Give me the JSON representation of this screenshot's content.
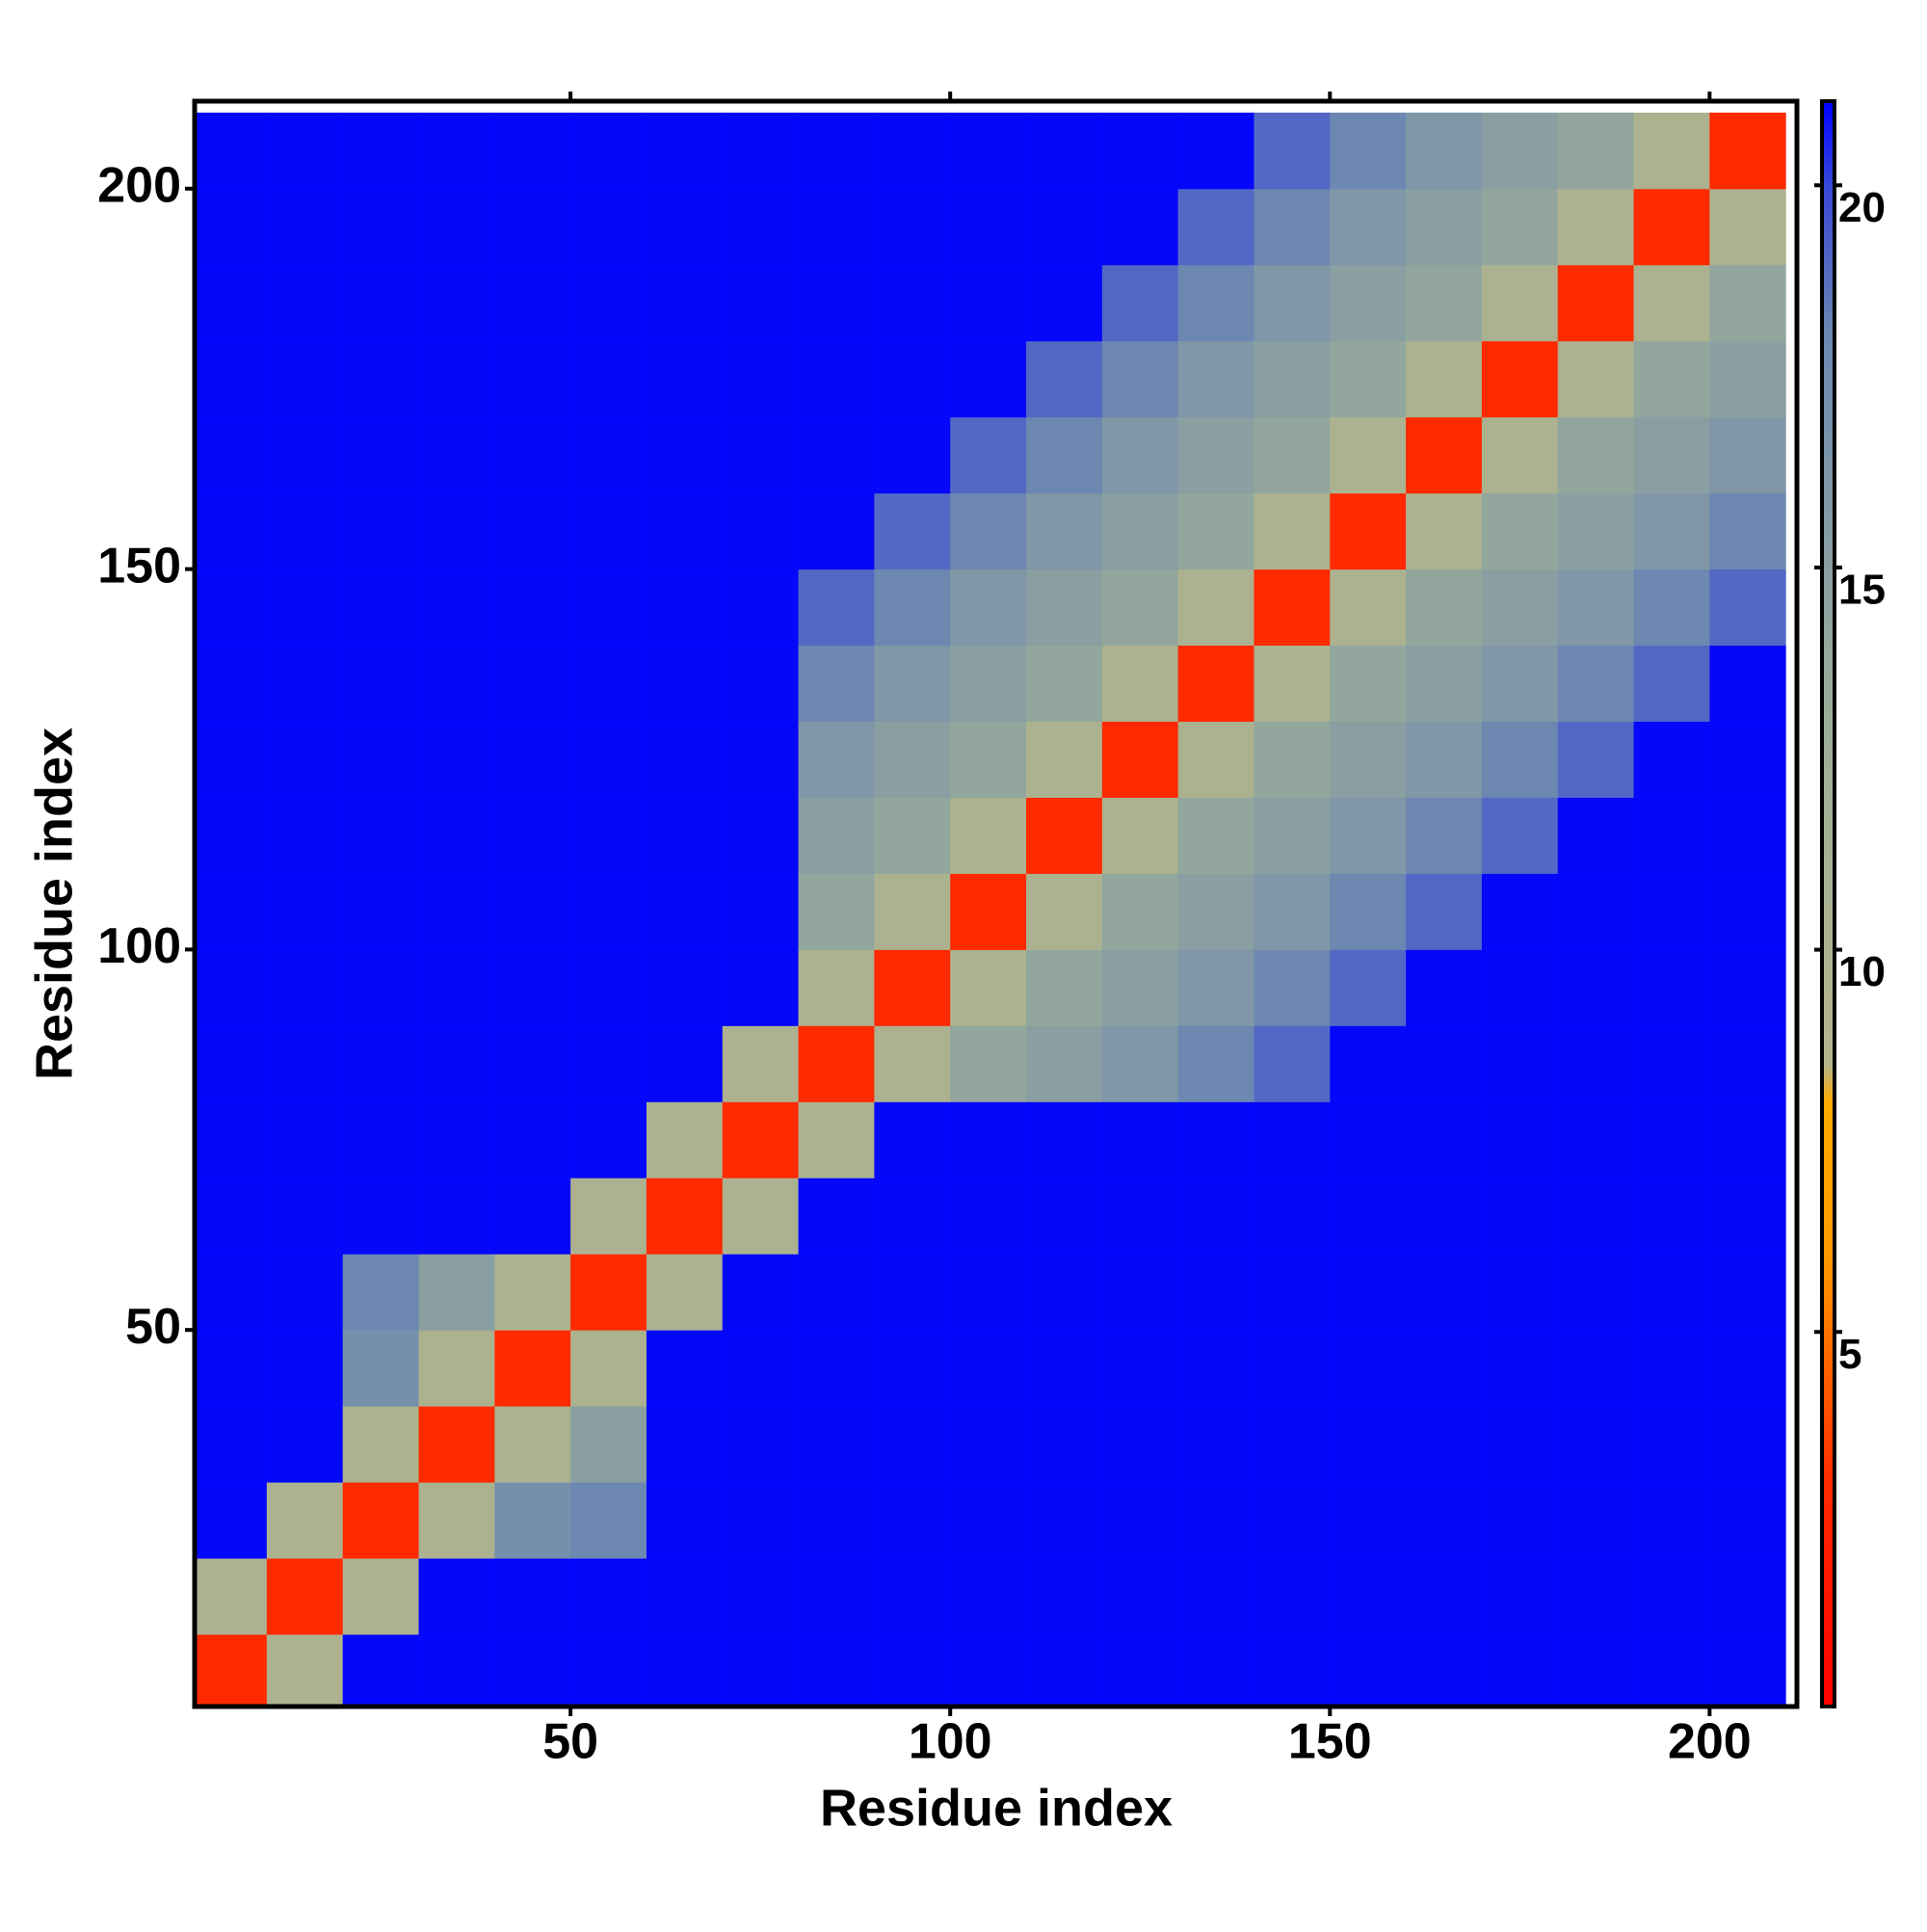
{
  "chart_data": {
    "type": "heatmap",
    "xlabel": "Residue index",
    "ylabel": "Residue index",
    "xlim": [
      0.5,
      211.5
    ],
    "ylim": [
      0.5,
      211.5
    ],
    "xticks": [
      50,
      100,
      150,
      200
    ],
    "yticks": [
      50,
      100,
      150,
      200
    ],
    "bins": [
      0,
      10,
      20,
      30,
      40,
      50,
      60,
      70,
      80,
      90,
      100,
      110,
      120,
      130,
      140,
      150,
      160,
      170,
      180,
      190,
      200,
      210
    ],
    "matrix": [
      [
        3,
        10,
        21,
        21,
        21,
        21,
        21,
        21,
        21,
        21,
        21,
        21,
        21,
        21,
        21,
        21,
        21,
        21,
        21,
        21,
        21
      ],
      [
        10,
        3,
        10,
        21,
        21,
        21,
        21,
        21,
        21,
        21,
        21,
        21,
        21,
        21,
        21,
        21,
        21,
        21,
        21,
        21,
        21
      ],
      [
        21,
        10,
        3,
        10,
        17,
        18,
        21,
        21,
        21,
        21,
        21,
        21,
        21,
        21,
        21,
        21,
        21,
        21,
        21,
        21,
        21
      ],
      [
        21,
        21,
        10,
        3,
        10,
        15,
        21,
        21,
        21,
        21,
        21,
        21,
        21,
        21,
        21,
        21,
        21,
        21,
        21,
        21,
        21
      ],
      [
        21,
        21,
        17,
        10,
        3,
        10,
        21,
        21,
        21,
        21,
        21,
        21,
        21,
        21,
        21,
        21,
        21,
        21,
        21,
        21,
        21
      ],
      [
        21,
        21,
        18,
        15,
        10,
        3,
        10,
        21,
        21,
        21,
        21,
        21,
        21,
        21,
        21,
        21,
        21,
        21,
        21,
        21,
        21
      ],
      [
        21,
        21,
        21,
        21,
        21,
        10,
        3,
        10,
        21,
        21,
        21,
        21,
        21,
        21,
        21,
        21,
        21,
        21,
        21,
        21,
        21
      ],
      [
        21,
        21,
        21,
        21,
        21,
        21,
        10,
        3,
        10,
        21,
        21,
        21,
        21,
        21,
        21,
        21,
        21,
        21,
        21,
        21,
        21
      ],
      [
        21,
        21,
        21,
        21,
        21,
        21,
        21,
        10,
        3,
        10,
        14,
        15,
        16,
        18,
        19,
        21,
        21,
        21,
        21,
        21,
        21
      ],
      [
        21,
        21,
        21,
        21,
        21,
        21,
        21,
        21,
        10,
        3,
        10,
        14,
        15,
        16,
        18,
        19,
        21,
        21,
        21,
        21,
        21
      ],
      [
        21,
        21,
        21,
        21,
        21,
        21,
        21,
        21,
        14,
        10,
        3,
        10,
        14,
        15,
        16,
        18,
        19,
        21,
        21,
        21,
        21
      ],
      [
        21,
        21,
        21,
        21,
        21,
        21,
        21,
        21,
        15,
        14,
        10,
        3,
        10,
        14,
        15,
        16,
        18,
        19,
        21,
        21,
        21
      ],
      [
        21,
        21,
        21,
        21,
        21,
        21,
        21,
        21,
        16,
        15,
        14,
        10,
        3,
        10,
        14,
        15,
        16,
        18,
        19,
        21,
        21
      ],
      [
        21,
        21,
        21,
        21,
        21,
        21,
        21,
        21,
        18,
        16,
        15,
        14,
        10,
        3,
        10,
        14,
        15,
        16,
        18,
        19,
        21
      ],
      [
        21,
        21,
        21,
        21,
        21,
        21,
        21,
        21,
        19,
        18,
        16,
        15,
        14,
        10,
        3,
        10,
        14,
        15,
        16,
        18,
        19
      ],
      [
        21,
        21,
        21,
        21,
        21,
        21,
        21,
        21,
        21,
        19,
        18,
        16,
        15,
        14,
        10,
        3,
        10,
        14,
        15,
        16,
        18
      ],
      [
        21,
        21,
        21,
        21,
        21,
        21,
        21,
        21,
        21,
        21,
        19,
        18,
        16,
        15,
        14,
        10,
        3,
        10,
        14,
        15,
        16
      ],
      [
        21,
        21,
        21,
        21,
        21,
        21,
        21,
        21,
        21,
        21,
        21,
        19,
        18,
        16,
        15,
        14,
        10,
        3,
        10,
        14,
        15
      ],
      [
        21,
        21,
        21,
        21,
        21,
        21,
        21,
        21,
        21,
        21,
        21,
        21,
        19,
        18,
        16,
        15,
        14,
        10,
        3,
        10,
        14
      ],
      [
        21,
        21,
        21,
        21,
        21,
        21,
        21,
        21,
        21,
        21,
        21,
        21,
        21,
        19,
        18,
        16,
        15,
        14,
        10,
        3,
        10
      ],
      [
        21,
        21,
        21,
        21,
        21,
        21,
        21,
        21,
        21,
        21,
        21,
        21,
        21,
        21,
        19,
        18,
        16,
        15,
        14,
        10,
        3
      ]
    ],
    "zlim": [
      0.1,
      21.1
    ],
    "zticks": [
      5,
      10,
      15,
      20
    ],
    "colorscale": [
      [
        0.1,
        "#ff0000"
      ],
      [
        3,
        "#ff2a00"
      ],
      [
        6,
        "#ff9a00"
      ],
      [
        8,
        "#ffaa00"
      ],
      [
        8.5,
        "#b4b48c"
      ],
      [
        13,
        "#9cae98"
      ],
      [
        18,
        "#6c88b0"
      ],
      [
        20,
        "#3848d8"
      ],
      [
        21.1,
        "#0000ff"
      ]
    ]
  }
}
